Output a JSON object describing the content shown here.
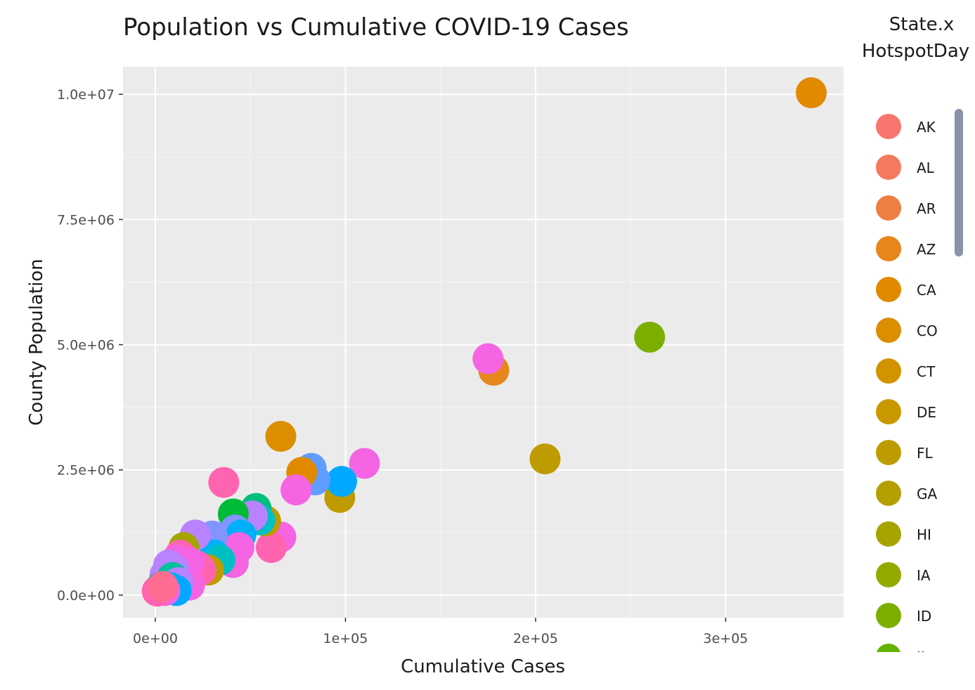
{
  "chart_data": {
    "type": "scatter",
    "title": "Population vs Cumulative COVID-19 Cases",
    "xlabel": "Cumulative Cases",
    "ylabel": "County Population",
    "xlim": [
      -17000,
      362000
    ],
    "ylim": [
      -450000,
      10550000
    ],
    "x_ticks": [
      0,
      100000,
      200000,
      300000
    ],
    "x_tick_labels": [
      "0e+00",
      "1e+05",
      "2e+05",
      "3e+05"
    ],
    "y_ticks": [
      0,
      2500000,
      5000000,
      7500000,
      10000000
    ],
    "y_tick_labels": [
      "0.0e+00",
      "2.5e+06",
      "5.0e+06",
      "7.5e+06",
      "1.0e+07"
    ],
    "grid": true,
    "legend": {
      "title_lines": [
        "State.x",
        "HotspotDay"
      ],
      "position": "right",
      "items": [
        {
          "label": "AK",
          "color": "#F8766D"
        },
        {
          "label": "AL",
          "color": "#F47A5F"
        },
        {
          "label": "AR",
          "color": "#EE7F44"
        },
        {
          "label": "AZ",
          "color": "#E7861B"
        },
        {
          "label": "CA",
          "color": "#E18A00"
        },
        {
          "label": "CO",
          "color": "#DB8E00"
        },
        {
          "label": "CT",
          "color": "#D29300"
        },
        {
          "label": "DE",
          "color": "#C99800"
        },
        {
          "label": "FL",
          "color": "#BE9C00"
        },
        {
          "label": "GA",
          "color": "#B3A000"
        },
        {
          "label": "HI",
          "color": "#A5A400"
        },
        {
          "label": "IA",
          "color": "#94A900"
        },
        {
          "label": "ID",
          "color": "#7CAE00"
        },
        {
          "label": "IL",
          "color": "#63B200"
        }
      ]
    },
    "points": [
      {
        "x": 345000,
        "y": 10030000,
        "color": "#E18A00"
      },
      {
        "x": 260000,
        "y": 5150000,
        "color": "#7CAE00"
      },
      {
        "x": 205000,
        "y": 2720000,
        "color": "#BE9C00"
      },
      {
        "x": 178000,
        "y": 4490000,
        "color": "#E7861B"
      },
      {
        "x": 175000,
        "y": 4720000,
        "color": "#F564E3"
      },
      {
        "x": 110000,
        "y": 2630000,
        "color": "#F564E3"
      },
      {
        "x": 97000,
        "y": 1950000,
        "color": "#BE9C00"
      },
      {
        "x": 98000,
        "y": 2270000,
        "color": "#00A9FF"
      },
      {
        "x": 84000,
        "y": 2300000,
        "color": "#619CFF"
      },
      {
        "x": 82000,
        "y": 2530000,
        "color": "#619CFF"
      },
      {
        "x": 77000,
        "y": 2450000,
        "color": "#E18A00"
      },
      {
        "x": 74000,
        "y": 2100000,
        "color": "#F564E3"
      },
      {
        "x": 66000,
        "y": 3170000,
        "color": "#DB8E00"
      },
      {
        "x": 66000,
        "y": 1160000,
        "color": "#F564E3"
      },
      {
        "x": 61000,
        "y": 950000,
        "color": "#FF64B0"
      },
      {
        "x": 58000,
        "y": 1480000,
        "color": "#BE9C00"
      },
      {
        "x": 53000,
        "y": 1730000,
        "color": "#00BF7D"
      },
      {
        "x": 55000,
        "y": 1500000,
        "color": "#00BFC4"
      },
      {
        "x": 51000,
        "y": 1580000,
        "color": "#B983FF"
      },
      {
        "x": 41000,
        "y": 1620000,
        "color": "#00BA38"
      },
      {
        "x": 42000,
        "y": 1300000,
        "color": "#8494FF"
      },
      {
        "x": 45000,
        "y": 1200000,
        "color": "#00B0F6"
      },
      {
        "x": 36000,
        "y": 2250000,
        "color": "#FF64B0"
      },
      {
        "x": 44000,
        "y": 950000,
        "color": "#F564E3"
      },
      {
        "x": 41000,
        "y": 650000,
        "color": "#F564E3"
      },
      {
        "x": 30000,
        "y": 1180000,
        "color": "#8494FF"
      },
      {
        "x": 31000,
        "y": 800000,
        "color": "#00B0F6"
      },
      {
        "x": 34000,
        "y": 700000,
        "color": "#00BFC4"
      },
      {
        "x": 21000,
        "y": 1200000,
        "color": "#B983FF"
      },
      {
        "x": 28000,
        "y": 500000,
        "color": "#BE9C00"
      },
      {
        "x": 24000,
        "y": 500000,
        "color": "#FF64B0"
      },
      {
        "x": 22000,
        "y": 580000,
        "color": "#FF64B0"
      },
      {
        "x": 15000,
        "y": 950000,
        "color": "#A5A400"
      },
      {
        "x": 13000,
        "y": 800000,
        "color": "#FF64B0"
      },
      {
        "x": 11000,
        "y": 700000,
        "color": "#F564E3"
      },
      {
        "x": 18000,
        "y": 650000,
        "color": "#F564E3"
      },
      {
        "x": 10000,
        "y": 500000,
        "color": "#B983FF"
      },
      {
        "x": 7000,
        "y": 600000,
        "color": "#B983FF"
      },
      {
        "x": 5000,
        "y": 400000,
        "color": "#B983FF"
      },
      {
        "x": 9000,
        "y": 350000,
        "color": "#00C19A"
      },
      {
        "x": 18000,
        "y": 200000,
        "color": "#F564E3"
      },
      {
        "x": 12000,
        "y": 250000,
        "color": "#B983FF"
      },
      {
        "x": 8000,
        "y": 150000,
        "color": "#00B0F6"
      },
      {
        "x": 11000,
        "y": 90000,
        "color": "#00A9FF"
      },
      {
        "x": 3000,
        "y": 160000,
        "color": "#00C19A"
      },
      {
        "x": 2000,
        "y": 110000,
        "color": "#00BFC4"
      },
      {
        "x": 5000,
        "y": 90000,
        "color": "#F564E3"
      },
      {
        "x": 1000,
        "y": 80000,
        "color": "#FF64B0"
      },
      {
        "x": 4000,
        "y": 170000,
        "color": "#FF6C91"
      }
    ]
  }
}
